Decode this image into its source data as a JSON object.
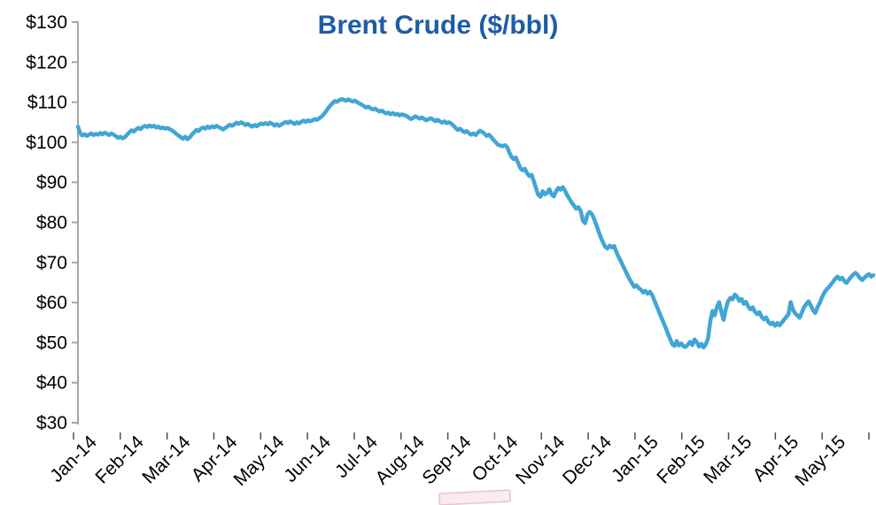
{
  "chart_data": {
    "type": "line",
    "title": "Brent Crude ($/bbl)",
    "xlabel": "",
    "ylabel": "",
    "ylim": [
      30,
      130
    ],
    "grid": false,
    "legend": "none",
    "y_ticks": [
      130,
      120,
      110,
      100,
      90,
      80,
      70,
      60,
      50,
      40,
      30
    ],
    "y_tick_labels": [
      "$130",
      "$120",
      "$110",
      "$100",
      "$90",
      "$80",
      "$70",
      "$60",
      "$50",
      "$40",
      "$30"
    ],
    "x_tick_labels": [
      "Jan-14",
      "Feb-14",
      "Mar-14",
      "Apr-14",
      "May-14",
      "Jun-14",
      "Jul-14",
      "Aug-14",
      "Sep-14",
      "Oct-14",
      "Nov-14",
      "Dec-14",
      "Jan-15",
      "Feb-15",
      "Mar-15",
      "Apr-15",
      "May-15"
    ],
    "series": [
      {
        "name": "Brent Crude",
        "unit": "$/bbl",
        "color": "#41A5D6",
        "values": [
          103.9,
          102.3,
          101.7,
          102.0,
          101.6,
          101.9,
          102.2,
          101.8,
          102.1,
          101.9,
          102.3,
          102.0,
          102.4,
          102.1,
          101.8,
          102.2,
          101.9,
          101.5,
          101.1,
          101.4,
          101.0,
          101.3,
          101.9,
          102.5,
          103.0,
          102.7,
          103.2,
          103.6,
          103.3,
          103.8,
          104.1,
          103.8,
          104.2,
          103.9,
          104.1,
          103.7,
          103.9,
          103.5,
          103.7,
          103.4,
          103.6,
          103.3,
          103.0,
          102.6,
          102.1,
          101.7,
          101.3,
          100.9,
          101.4,
          100.8,
          101.2,
          101.9,
          102.5,
          103.1,
          102.8,
          103.4,
          103.7,
          103.4,
          103.9,
          103.6,
          104.0,
          103.7,
          104.1,
          103.8,
          103.5,
          103.2,
          103.6,
          104.0,
          104.4,
          104.1,
          104.5,
          104.9,
          104.6,
          105.0,
          104.7,
          104.3,
          104.6,
          104.2,
          103.9,
          104.3,
          104.0,
          104.4,
          104.7,
          104.5,
          104.8,
          104.5,
          104.9,
          104.6,
          104.2,
          104.5,
          104.1,
          104.4,
          104.8,
          105.1,
          104.8,
          105.2,
          104.9,
          104.6,
          105.0,
          104.7,
          105.1,
          105.4,
          105.1,
          105.5,
          105.2,
          105.5,
          105.8,
          105.6,
          106.0,
          106.4,
          107.0,
          107.7,
          108.5,
          109.2,
          109.8,
          110.3,
          110.1,
          110.5,
          110.8,
          110.6,
          110.4,
          110.7,
          110.4,
          110.2,
          110.4,
          110.0,
          109.7,
          109.4,
          109.0,
          108.7,
          108.9,
          108.5,
          108.2,
          108.4,
          108.0,
          107.7,
          107.9,
          107.5,
          107.2,
          107.4,
          107.0,
          107.3,
          106.9,
          107.1,
          106.7,
          107.0,
          106.8,
          106.6,
          106.2,
          105.8,
          106.1,
          106.5,
          106.2,
          105.9,
          106.2,
          105.8,
          105.5,
          105.8,
          106.0,
          105.6,
          105.3,
          105.6,
          105.2,
          104.9,
          105.2,
          104.8,
          105.0,
          104.7,
          104.2,
          103.6,
          103.1,
          103.4,
          102.9,
          102.5,
          102.8,
          102.3,
          101.9,
          102.2,
          101.8,
          102.4,
          102.9,
          102.6,
          102.1,
          101.6,
          101.9,
          101.3,
          100.6,
          100.0,
          99.4,
          99.2,
          99.0,
          99.3,
          98.9,
          97.6,
          96.4,
          95.8,
          96.2,
          94.9,
          93.6,
          93.0,
          93.4,
          92.3,
          91.6,
          91.9,
          90.3,
          88.6,
          86.9,
          86.4,
          87.8,
          87.0,
          87.4,
          88.3,
          87.0,
          86.5,
          87.8,
          88.6,
          88.2,
          88.8,
          87.9,
          86.8,
          85.9,
          84.9,
          84.2,
          83.4,
          83.8,
          82.9,
          80.4,
          79.8,
          81.9,
          82.6,
          82.1,
          80.9,
          79.4,
          77.8,
          76.3,
          75.0,
          73.9,
          73.5,
          74.2,
          73.8,
          74.1,
          72.6,
          71.4,
          70.3,
          69.1,
          68.0,
          66.8,
          65.7,
          64.8,
          63.9,
          64.3,
          63.6,
          63.2,
          62.5,
          62.9,
          62.2,
          62.7,
          61.9,
          60.5,
          59.2,
          57.8,
          56.4,
          55.1,
          53.8,
          52.3,
          51.0,
          49.6,
          49.2,
          50.4,
          49.3,
          49.8,
          49.1,
          48.9,
          49.5,
          50.2,
          49.4,
          50.8,
          50.1,
          49.0,
          49.7,
          48.8,
          49.6,
          50.9,
          55.3,
          57.9,
          56.8,
          58.9,
          60.1,
          57.6,
          55.7,
          58.4,
          60.3,
          61.2,
          60.8,
          62.0,
          61.5,
          60.4,
          60.9,
          59.7,
          60.2,
          59.0,
          58.3,
          58.8,
          57.7,
          57.1,
          57.6,
          56.4,
          55.8,
          56.3,
          55.2,
          54.6,
          55.0,
          54.2,
          54.9,
          54.3,
          55.0,
          55.7,
          56.4,
          57.0,
          60.1,
          58.2,
          57.3,
          56.8,
          56.2,
          57.5,
          58.9,
          59.6,
          60.3,
          59.2,
          58.1,
          57.4,
          58.8,
          59.9,
          61.3,
          62.4,
          63.2,
          63.8,
          64.5,
          65.2,
          66.0,
          66.5,
          65.8,
          66.2,
          65.4,
          64.9,
          65.7,
          66.4,
          67.0,
          67.4,
          66.9,
          66.1,
          65.6,
          66.2,
          66.7,
          67.1,
          66.5,
          66.8
        ]
      }
    ]
  },
  "colors": {
    "title": "#1E5CA6",
    "axis_line": "#A6A6A6",
    "tick_label": "#000000",
    "x_tick_mark": "#4D4D4D",
    "line": "#41A5D6",
    "watermark_stroke": "#DD9FB5",
    "watermark_fill": "#F2D3DD"
  }
}
